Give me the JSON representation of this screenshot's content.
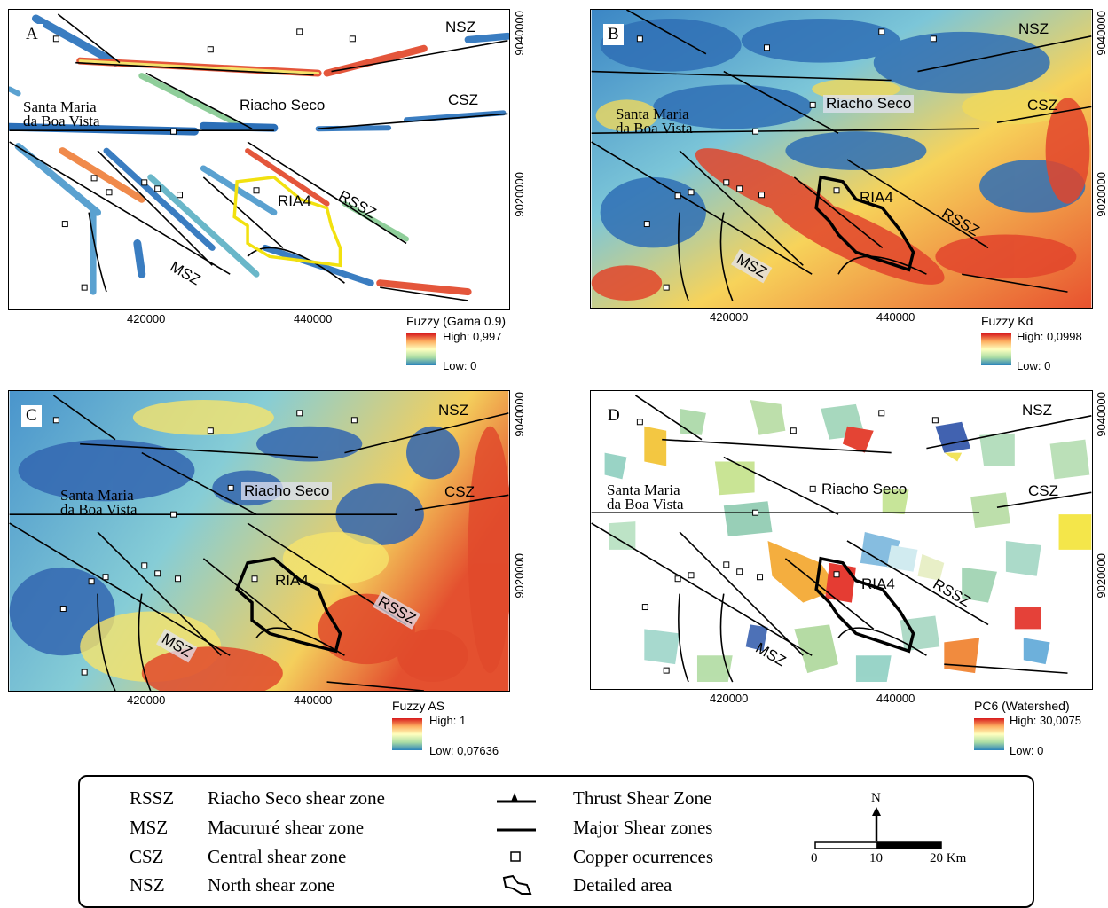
{
  "panels": [
    {
      "letter": "A",
      "legend_title": "Fuzzy (Gama 0.9)",
      "high": "High: 0,997",
      "low": "Low: 0"
    },
    {
      "letter": "B",
      "legend_title": "Fuzzy Kd",
      "high": "High: 0,0998",
      "low": "Low: 0"
    },
    {
      "letter": "C",
      "legend_title": "Fuzzy  AS",
      "high": "High: 1",
      "low": "Low: 0,07636"
    },
    {
      "letter": "D",
      "legend_title": "PC6 (Watershed)",
      "high": "High: 30,0075",
      "low": "Low: 0"
    }
  ],
  "labels": {
    "nsz": "NSZ",
    "csz": "CSZ",
    "rssz": "RSSZ",
    "msz": "MSZ",
    "riacho_seco": "Riacho Seco",
    "ria4": "RIA4",
    "santa_maria_1": "Santa Maria",
    "santa_maria_2": "da Boa Vista"
  },
  "coords": {
    "x1": "420000",
    "x2": "440000",
    "y1": "9040000",
    "y2": "9020000"
  },
  "legend": {
    "abbrev": [
      {
        "code": "RSSZ",
        "name": "Riacho Seco shear zone"
      },
      {
        "code": "MSZ",
        "name": "Macururé shear zone"
      },
      {
        "code": "CSZ",
        "name": "Central shear zone"
      },
      {
        "code": "NSZ",
        "name": "North shear zone"
      }
    ],
    "symbols": [
      {
        "name": "Thrust Shear Zone"
      },
      {
        "name": "Major Shear zones"
      },
      {
        "name": "Copper ocurrences"
      },
      {
        "name": "Detailed area"
      }
    ],
    "north": "N",
    "scale": [
      "0",
      "10",
      "20 Km"
    ]
  },
  "colors": {
    "high": "#d7191c",
    "mid": "#ffffbf",
    "low": "#2b83ba",
    "outline_a": "#f2e10f",
    "outline_other": "#000000"
  }
}
